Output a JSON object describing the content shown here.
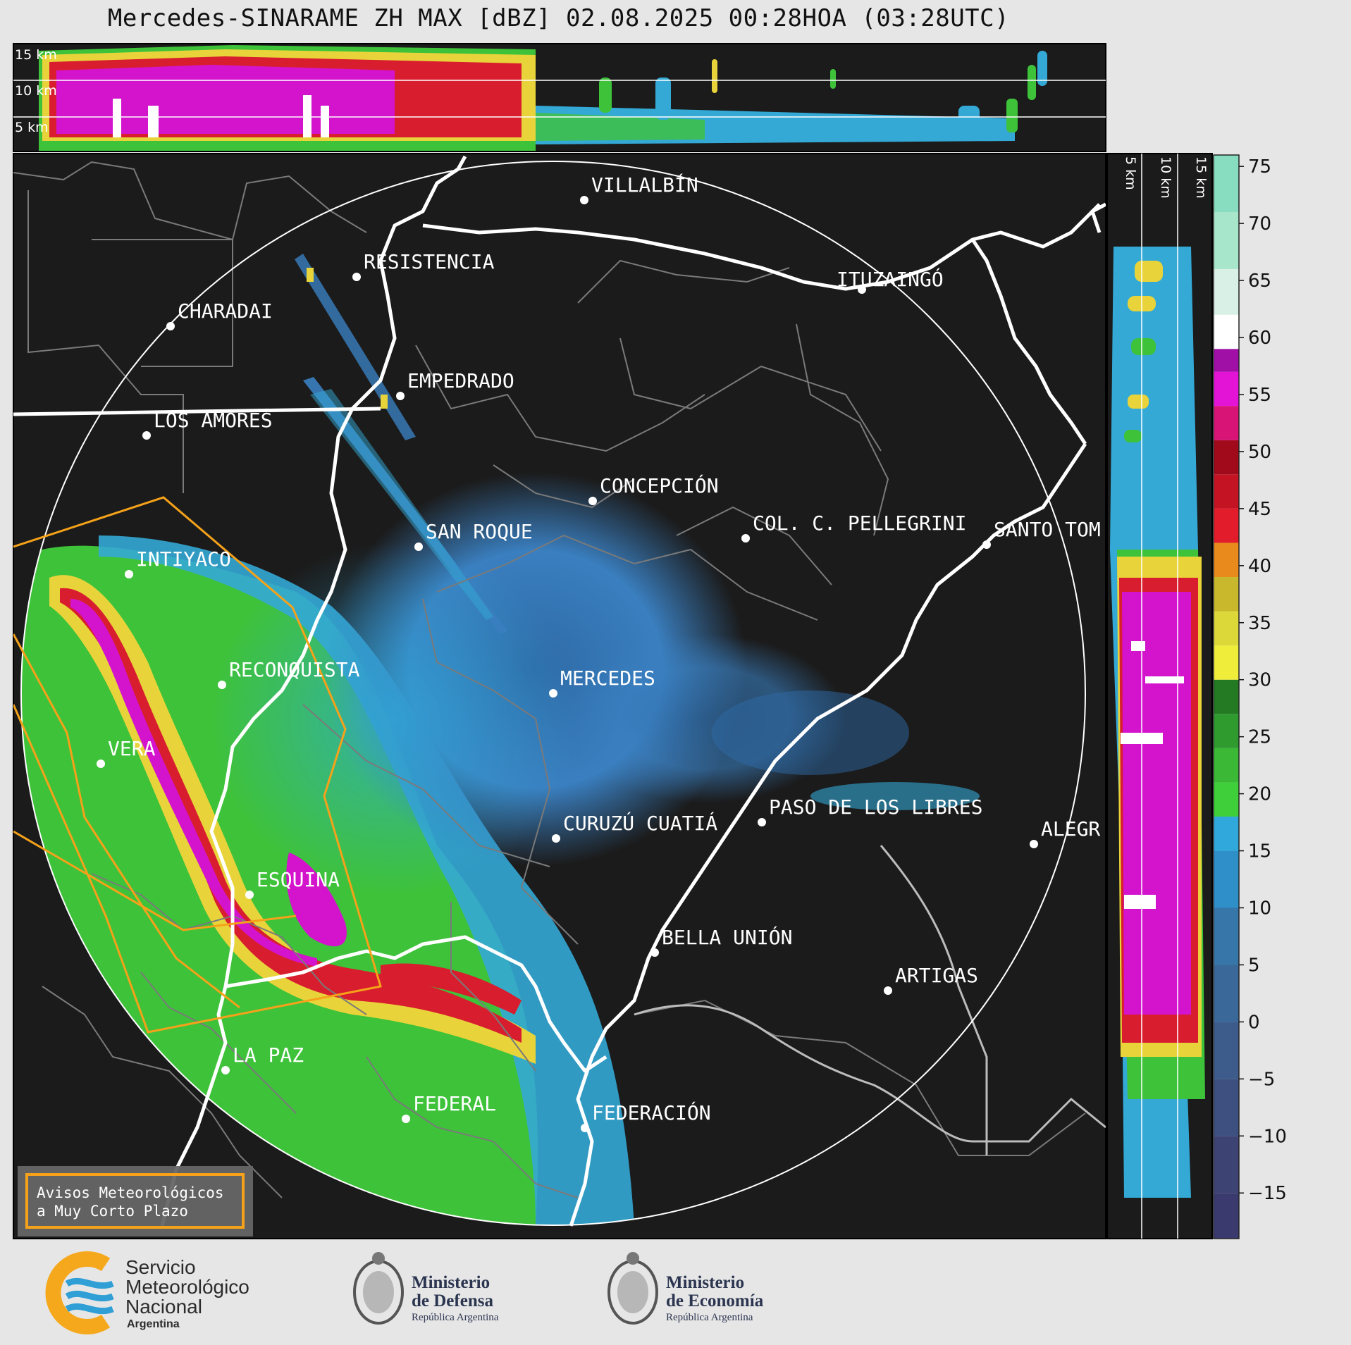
{
  "title": "Mercedes-SINARAME ZH MAX [dBZ] 02.08.2025 00:28HOA (03:28UTC)",
  "top_panel": {
    "labels": [
      "15 km",
      "10 km",
      "5 km"
    ]
  },
  "side_panel": {
    "labels": [
      "5 km",
      "10 km",
      "15 km"
    ]
  },
  "colorbar": {
    "ticks": [
      "75",
      "70",
      "65",
      "60",
      "55",
      "50",
      "45",
      "40",
      "35",
      "30",
      "25",
      "20",
      "15",
      "10",
      "5",
      "0",
      "−5",
      "−10",
      "−15"
    ],
    "tick_values": [
      75,
      70,
      65,
      60,
      55,
      50,
      45,
      40,
      35,
      30,
      25,
      20,
      15,
      10,
      5,
      0,
      -5,
      -10,
      -15
    ],
    "range": [
      -19,
      76
    ]
  },
  "cities": [
    {
      "name": "VILLALBÍN"
    },
    {
      "name": "RESISTENCIA"
    },
    {
      "name": "CHARADAI"
    },
    {
      "name": "ITUZAINGÓ"
    },
    {
      "name": "EMPEDRADO"
    },
    {
      "name": "LOS AMORES"
    },
    {
      "name": "CONCEPCIÓN"
    },
    {
      "name": "COL. C. PELLEGRINI"
    },
    {
      "name": "SANTO TOM"
    },
    {
      "name": "SAN ROQUE"
    },
    {
      "name": "INTIYACO"
    },
    {
      "name": "MERCEDES"
    },
    {
      "name": "RECONQUISTA"
    },
    {
      "name": "VERA"
    },
    {
      "name": "CURUZÚ CUATIÁ"
    },
    {
      "name": "PASO DE LOS LIBRES"
    },
    {
      "name": "ALEGR"
    },
    {
      "name": "ESQUINA"
    },
    {
      "name": "BELLA UNIÓN"
    },
    {
      "name": "ARTIGAS"
    },
    {
      "name": "LA PAZ"
    },
    {
      "name": "FEDERAL"
    },
    {
      "name": "FEDERACIÓN"
    }
  ],
  "legend_box": {
    "line1": "Avisos Meteorológicos",
    "line2": "a Muy Corto Plazo"
  },
  "footer": {
    "smn": {
      "line1": "Servicio",
      "line2": "Meteorológico",
      "line3": "Nacional",
      "line4": "Argentina"
    },
    "defensa": {
      "line1": "Ministerio",
      "line2": "de Defensa",
      "line3": "República Argentina"
    },
    "economia": {
      "line1": "Ministerio",
      "line2": "de Economía",
      "line3": "República Argentina"
    }
  },
  "colors": {
    "map_bg": "#1b1b1b",
    "warning_polygon": "#f5a21a",
    "smn_orange": "#f6a81c",
    "smn_blue": "#2f9fd6"
  }
}
